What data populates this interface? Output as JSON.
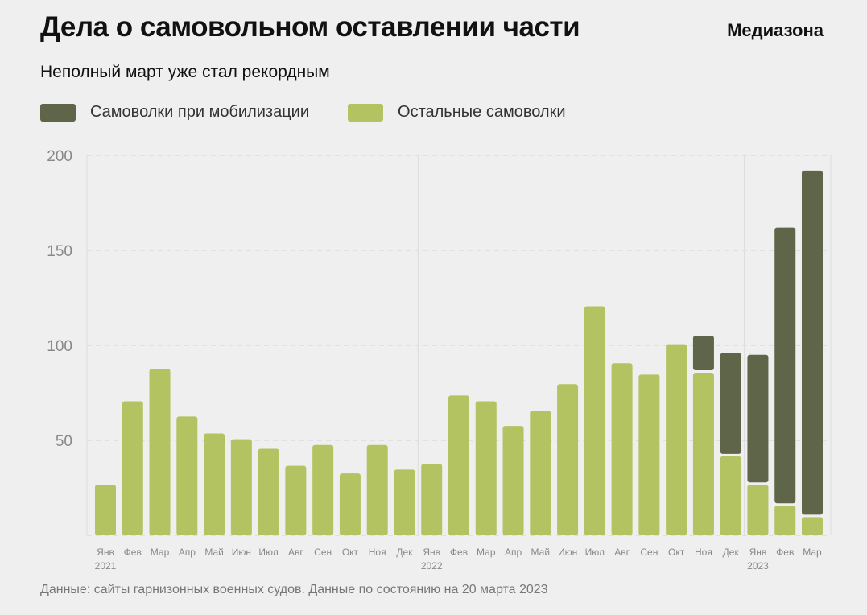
{
  "header": {
    "title": "Дела о самовольном оставлении части",
    "brand": "Медиазона",
    "subtitle": "Неполный март уже стал рекордным"
  },
  "footer": {
    "note": "Данные: сайты гарнизонных военных судов. Данные по состоянию на 20 марта 2023"
  },
  "chart_data": {
    "type": "bar",
    "stacked": true,
    "title": "Дела о самовольном оставлении части",
    "subtitle": "Неполный март уже стал рекордным",
    "categories": [
      "Янв",
      "Фев",
      "Мар",
      "Апр",
      "Май",
      "Июн",
      "Июл",
      "Авг",
      "Сен",
      "Окт",
      "Ноя",
      "Дек",
      "Янв",
      "Фев",
      "Мар",
      "Апр",
      "Май",
      "Июн",
      "Июл",
      "Авг",
      "Сен",
      "Окт",
      "Ноя",
      "Дек",
      "Янв",
      "Фев",
      "Мар"
    ],
    "year_labels": [
      {
        "index": 0,
        "label": "2021"
      },
      {
        "index": 12,
        "label": "2022"
      },
      {
        "index": 24,
        "label": "2023"
      }
    ],
    "series": [
      {
        "name": "Остальные самоволки",
        "color": "#b3c361",
        "values": [
          27,
          71,
          88,
          63,
          54,
          51,
          46,
          37,
          48,
          33,
          48,
          35,
          38,
          74,
          71,
          58,
          66,
          80,
          121,
          91,
          85,
          101,
          86,
          42,
          27,
          16,
          10
        ]
      },
      {
        "name": "Самоволки при мобилизации",
        "color": "#5f6548",
        "values": [
          0,
          0,
          0,
          0,
          0,
          0,
          0,
          0,
          0,
          0,
          0,
          0,
          0,
          0,
          0,
          0,
          0,
          0,
          0,
          0,
          0,
          0,
          19,
          54,
          68,
          146,
          182
        ]
      }
    ],
    "legend_order": [
      1,
      0
    ],
    "legend_position": "top-left",
    "yticks": [
      50,
      100,
      150,
      200
    ],
    "ylim": [
      0,
      200
    ],
    "grid": true
  }
}
